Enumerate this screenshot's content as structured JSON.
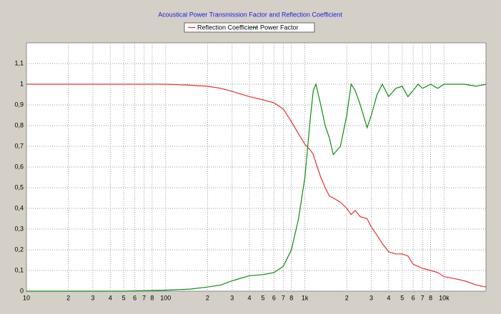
{
  "chart_data": {
    "type": "line",
    "title": "Acoustical Power Transmission Factor and Reflection Coefficient",
    "x": [
      10,
      50,
      100,
      150,
      200,
      250,
      300,
      400,
      500,
      600,
      700,
      800,
      900,
      1000,
      1100,
      1150,
      1200,
      1300,
      1400,
      1500,
      1600,
      1800,
      2000,
      2150,
      2300,
      2500,
      2800,
      3000,
      3300,
      3600,
      4000,
      4500,
      5000,
      5500,
      6000,
      6500,
      7000,
      8000,
      9000,
      10000,
      12000,
      14000,
      17000,
      20000
    ],
    "series": [
      {
        "name": "Reflection Coefficient",
        "color": "#e03030",
        "values": [
          1,
          1,
          1,
          0.995,
          0.99,
          0.98,
          0.965,
          0.94,
          0.925,
          0.91,
          0.88,
          0.82,
          0.76,
          0.71,
          0.68,
          0.66,
          0.62,
          0.55,
          0.5,
          0.46,
          0.45,
          0.43,
          0.4,
          0.37,
          0.39,
          0.36,
          0.35,
          0.31,
          0.27,
          0.23,
          0.19,
          0.18,
          0.18,
          0.17,
          0.13,
          0.12,
          0.11,
          0.1,
          0.09,
          0.07,
          0.06,
          0.05,
          0.03,
          0.02
        ]
      },
      {
        "name": "Power Factor",
        "color": "#108a10",
        "values": [
          0,
          0,
          0.005,
          0.01,
          0.02,
          0.03,
          0.05,
          0.075,
          0.08,
          0.09,
          0.12,
          0.2,
          0.35,
          0.55,
          0.85,
          0.97,
          1,
          0.9,
          0.8,
          0.74,
          0.66,
          0.7,
          0.85,
          1,
          0.97,
          0.9,
          0.79,
          0.85,
          0.95,
          1,
          0.94,
          0.98,
          0.99,
          0.94,
          0.97,
          1,
          0.98,
          1,
          0.98,
          1,
          1,
          1,
          0.99,
          1
        ]
      }
    ],
    "xscale": "log",
    "xlim": [
      10,
      20000
    ],
    "xticks": [
      10,
      {
        "value": 20,
        "label": "2"
      },
      {
        "value": 30,
        "label": "3"
      },
      {
        "value": 40,
        "label": "4"
      },
      {
        "value": 50,
        "label": "5"
      },
      {
        "value": 60,
        "label": "6"
      },
      {
        "value": 70,
        "label": "7"
      },
      {
        "value": 80,
        "label": "8"
      },
      100,
      {
        "value": 200,
        "label": "2"
      },
      {
        "value": 300,
        "label": "3"
      },
      {
        "value": 400,
        "label": "4"
      },
      {
        "value": 500,
        "label": "5"
      },
      {
        "value": 600,
        "label": "6"
      },
      {
        "value": 700,
        "label": "7"
      },
      {
        "value": 800,
        "label": "8"
      },
      {
        "value": 1000,
        "label": "1k"
      },
      {
        "value": 2000,
        "label": "2"
      },
      {
        "value": 3000,
        "label": "3"
      },
      {
        "value": 4000,
        "label": "4"
      },
      {
        "value": 5000,
        "label": "5"
      },
      {
        "value": 6000,
        "label": "6"
      },
      {
        "value": 7000,
        "label": "7"
      },
      {
        "value": 8000,
        "label": "8"
      },
      {
        "value": 10000,
        "label": "10k"
      }
    ],
    "ylim": [
      0,
      1.2
    ],
    "yticks": [
      0,
      {
        "value": 0.1,
        "label": "0,1"
      },
      {
        "value": 0.2,
        "label": "0,2"
      },
      {
        "value": 0.3,
        "label": "0,3"
      },
      {
        "value": 0.4,
        "label": "0,4"
      },
      {
        "value": 0.5,
        "label": "0,5"
      },
      {
        "value": 0.6,
        "label": "0,6"
      },
      {
        "value": 0.7,
        "label": "0,7"
      },
      {
        "value": 0.8,
        "label": "0,8"
      },
      {
        "value": 0.9,
        "label": "0,9"
      },
      1,
      {
        "value": 1.1,
        "label": "1,1"
      }
    ],
    "grid": true
  }
}
